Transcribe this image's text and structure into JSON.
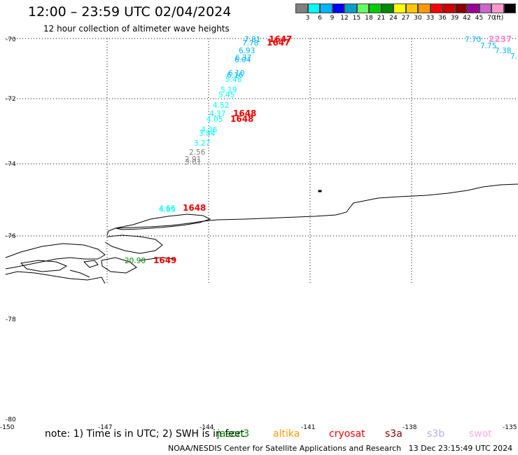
{
  "header": {
    "title": "12:00 – 23:59 UTC 02/04/2024",
    "subtitle": "12 hour collection of altimeter wave heights"
  },
  "legend": {
    "colors": [
      "#808080",
      "#00ffff",
      "#00b4ff",
      "#0000ff",
      "#00a0c8",
      "#66ff66",
      "#00cc00",
      "#008800",
      "#ffff00",
      "#ffc800",
      "#ff9900",
      "#ff0000",
      "#cc0000",
      "#880000",
      "#990099",
      "#cc66cc",
      "#ff99cc",
      "#000000"
    ],
    "labels": [
      "3",
      "6",
      "9",
      "12",
      "15",
      "18",
      "21",
      "24",
      "27",
      "30",
      "33",
      "36",
      "39",
      "42",
      "45",
      "70",
      "(ft)"
    ]
  },
  "axes": {
    "lat_labels": [
      "-70",
      "-72",
      "-74",
      "-76",
      "-78",
      "-80"
    ],
    "lon_labels": [
      "-150",
      "-147",
      "-144",
      "-141",
      "-138",
      "-135"
    ]
  },
  "wave_points": [
    {
      "text": "7.81",
      "color": "#00b4ff"
    },
    {
      "text": "7.78",
      "color": "#00b4ff"
    },
    {
      "text": "6.93",
      "color": "#00b4ff"
    },
    {
      "text": "6.37",
      "color": "#00b4ff"
    },
    {
      "text": "6.04",
      "color": "#00b4ff"
    },
    {
      "text": "6.10",
      "color": "#00b4ff"
    },
    {
      "text": "6.16",
      "color": "#00b4ff"
    },
    {
      "text": "5.46",
      "color": "#00ffff"
    },
    {
      "text": "5.19",
      "color": "#00ffff"
    },
    {
      "text": "5.45",
      "color": "#00ffff"
    },
    {
      "text": "4.52",
      "color": "#00ffff"
    },
    {
      "text": "4.37",
      "color": "#00ffff"
    },
    {
      "text": "4.05",
      "color": "#00ffff"
    },
    {
      "text": "4.36",
      "color": "#00ffff"
    },
    {
      "text": "3.84",
      "color": "#00ffff"
    },
    {
      "text": "3.27",
      "color": "#00ffff"
    },
    {
      "text": "2.56",
      "color": "#808080"
    },
    {
      "text": "2.91",
      "color": "#808080"
    },
    {
      "text": "3.01",
      "color": "#808080"
    },
    {
      "text": "4.66",
      "color": "#00ffff"
    },
    {
      "text": "4.85",
      "color": "#00ffff"
    },
    {
      "text": "20.90",
      "color": "#008800"
    },
    {
      "text": "7.70",
      "color": "#00b4ff"
    },
    {
      "text": "7.75",
      "color": "#00b4ff"
    },
    {
      "text": "7.38",
      "color": "#00b4ff"
    },
    {
      "text": "7.",
      "color": "#00b4ff"
    }
  ],
  "orbit_labels": [
    {
      "text": "1647",
      "color": "#ee0000"
    },
    {
      "text": "1647",
      "color": "#ee0000"
    },
    {
      "text": "1648",
      "color": "#ee0000"
    },
    {
      "text": "1648",
      "color": "#ee0000"
    },
    {
      "text": "1648",
      "color": "#ee0000"
    },
    {
      "text": "1649",
      "color": "#ee0000"
    },
    {
      "text": "2237",
      "color": "#ff88cc"
    }
  ],
  "footer": {
    "note": "note:  1) Time is in UTC;  2) SWH is in feet",
    "satellites": [
      {
        "name": "jason3",
        "color": "#008800"
      },
      {
        "name": "altika",
        "color": "#ff9900"
      },
      {
        "name": "cryosat",
        "color": "#ee0000"
      },
      {
        "name": "s3a",
        "color": "#880000"
      },
      {
        "name": "s3b",
        "color": "#bbaaee"
      },
      {
        "name": "swot",
        "color": "#ffaadd"
      }
    ],
    "credit": "NOAA/NESDIS Center for Satellite Applications and Research",
    "timestamp": "13 Dec 23:15:49 UTC 2024"
  }
}
